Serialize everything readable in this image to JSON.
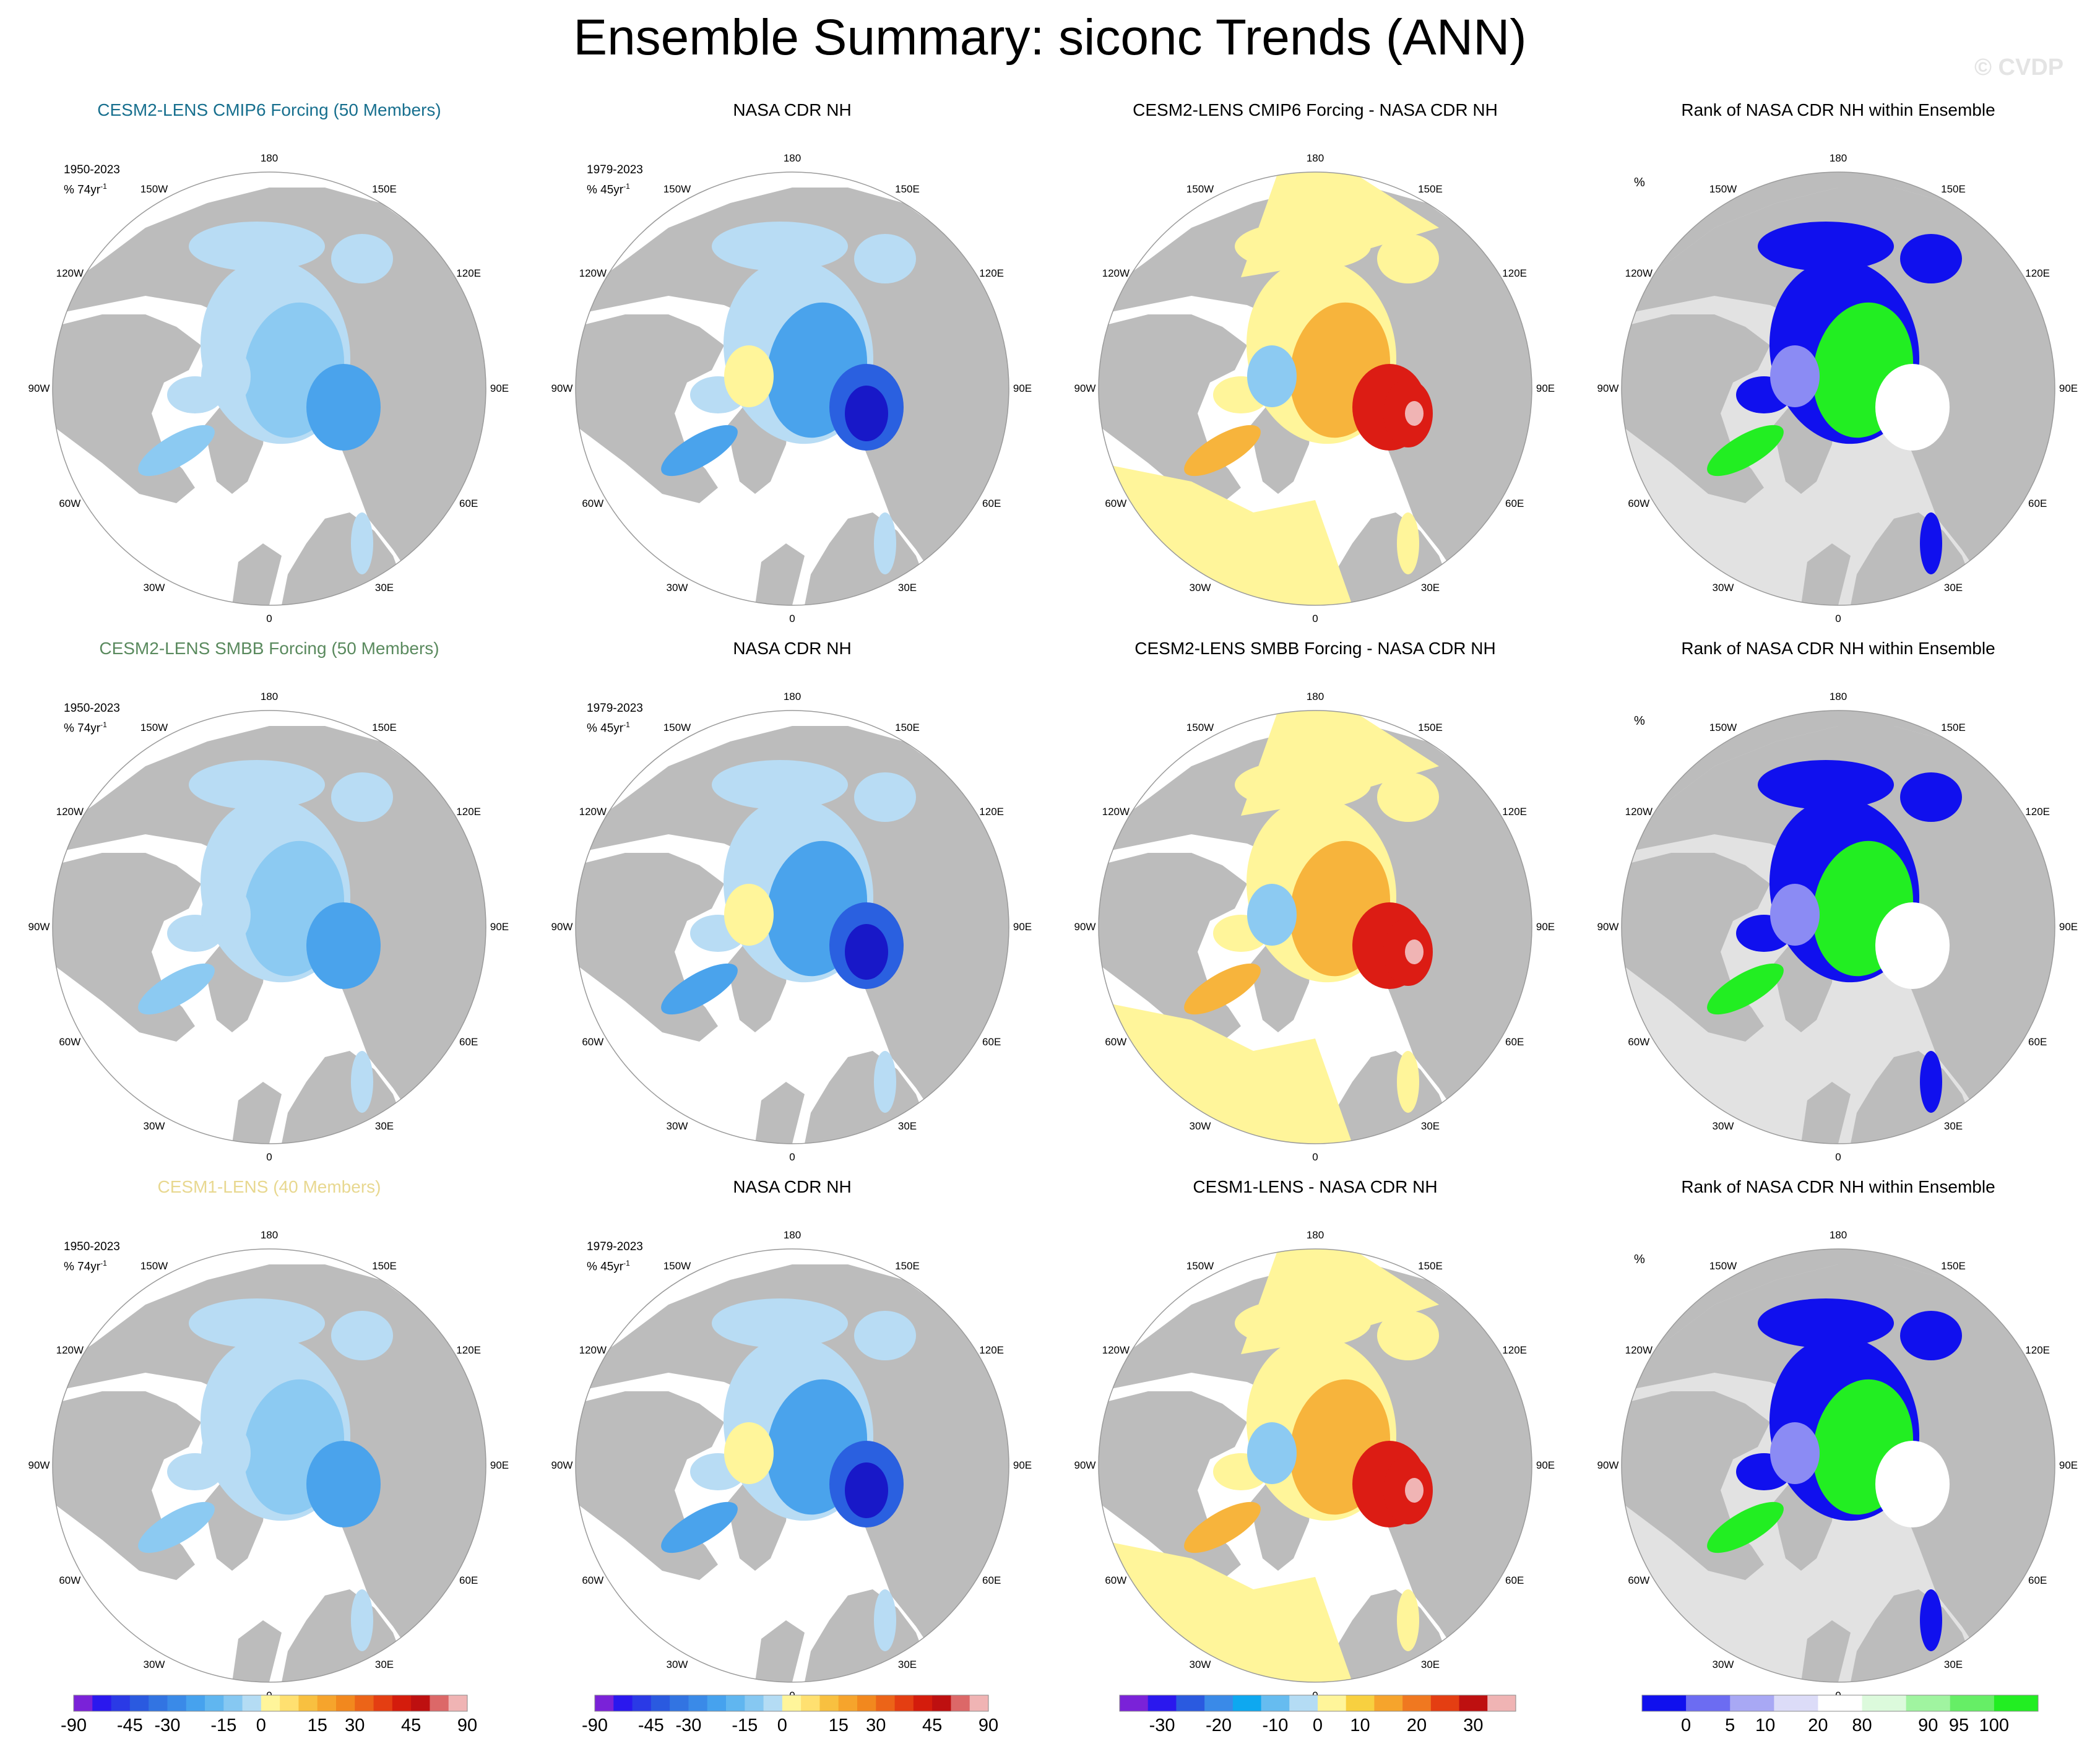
{
  "title": "Ensemble Summary: siconc Trends (ANN)",
  "watermark": "© CVDP",
  "colors": {
    "land": "#bcbcbc",
    "ocean": "#ffffff",
    "rank_background": "#e2e2e2",
    "blue_light": "#b8dcf4",
    "blue_mid": "#8ccaf2",
    "blue": "#4aa3ec",
    "blue_deep": "#2a60e0",
    "yellow": "#fff59a",
    "orange": "#f7b43c",
    "orange_red": "#f07820",
    "red": "#dc1c14",
    "pink": "#f0b4b4",
    "green": "#22ee22",
    "rank_blue": "#1010ee"
  },
  "longitude_labels": [
    "180",
    "150E",
    "120E",
    "90E",
    "60E",
    "30E",
    "0",
    "30W",
    "60W",
    "90W",
    "120W",
    "150W"
  ],
  "rows": [
    {
      "panels": [
        {
          "title": "CESM2-LENS CMIP6 Forcing (50 Members)",
          "title_color": "#176f8e",
          "period": "1950-2023",
          "units": "% 74yr",
          "units_sup": "-1",
          "kind": "model"
        },
        {
          "title": "NASA CDR NH",
          "title_color": "#000000",
          "period": "1979-2023",
          "units": "% 45yr",
          "units_sup": "-1",
          "kind": "obs"
        },
        {
          "title": "CESM2-LENS CMIP6 Forcing - NASA CDR NH",
          "title_color": "#000000",
          "kind": "diff"
        },
        {
          "title": "Rank of NASA CDR NH within Ensemble",
          "title_color": "#000000",
          "units": "%",
          "kind": "rank"
        }
      ]
    },
    {
      "panels": [
        {
          "title": "CESM2-LENS SMBB Forcing (50 Members)",
          "title_color": "#5a8a5e",
          "period": "1950-2023",
          "units": "% 74yr",
          "units_sup": "-1",
          "kind": "model"
        },
        {
          "title": "NASA CDR NH",
          "title_color": "#000000",
          "period": "1979-2023",
          "units": "% 45yr",
          "units_sup": "-1",
          "kind": "obs"
        },
        {
          "title": "CESM2-LENS SMBB Forcing - NASA CDR NH",
          "title_color": "#000000",
          "kind": "diff"
        },
        {
          "title": "Rank of NASA CDR NH within Ensemble",
          "title_color": "#000000",
          "units": "%",
          "kind": "rank"
        }
      ]
    },
    {
      "panels": [
        {
          "title": "CESM1-LENS (40 Members)",
          "title_color": "#e8d890",
          "period": "1950-2023",
          "units": "% 74yr",
          "units_sup": "-1",
          "kind": "model"
        },
        {
          "title": "NASA CDR NH",
          "title_color": "#000000",
          "period": "1979-2023",
          "units": "% 45yr",
          "units_sup": "-1",
          "kind": "obs"
        },
        {
          "title": "CESM1-LENS - NASA CDR NH",
          "title_color": "#000000",
          "kind": "diff"
        },
        {
          "title": "Rank of NASA CDR NH within Ensemble",
          "title_color": "#000000",
          "units": "%",
          "kind": "rank"
        }
      ]
    }
  ],
  "colorbars": [
    {
      "name": "trend-colorbar-1",
      "colors": [
        "#7a22d8",
        "#2a18ee",
        "#2a3ae6",
        "#2a5ae0",
        "#3274e2",
        "#3a8ae8",
        "#46a2ee",
        "#60b6f0",
        "#86c8f2",
        "#b4dcf4",
        "#fff59a",
        "#ffe070",
        "#f8c040",
        "#f6a42c",
        "#f2881e",
        "#ec6418",
        "#e43e12",
        "#d41c0c",
        "#be1010",
        "#dc6868",
        "#f0b4b4"
      ],
      "labels": [
        "-90",
        "-45",
        "-30",
        "-15",
        "0",
        "15",
        "30",
        "45",
        "90"
      ],
      "label_edges": [
        0,
        3,
        5,
        8,
        10,
        13,
        15,
        18,
        21
      ]
    },
    {
      "name": "trend-colorbar-2",
      "colors": [
        "#7a22d8",
        "#2a18ee",
        "#2a3ae6",
        "#2a5ae0",
        "#3274e2",
        "#3a8ae8",
        "#46a2ee",
        "#60b6f0",
        "#86c8f2",
        "#b4dcf4",
        "#fff59a",
        "#ffe070",
        "#f8c040",
        "#f6a42c",
        "#f2881e",
        "#ec6418",
        "#e43e12",
        "#d41c0c",
        "#be1010",
        "#dc6868",
        "#f0b4b4"
      ],
      "labels": [
        "-90",
        "-45",
        "-30",
        "-15",
        "0",
        "15",
        "30",
        "45",
        "90"
      ],
      "label_edges": [
        0,
        3,
        5,
        8,
        10,
        13,
        15,
        18,
        21
      ]
    },
    {
      "name": "difference-colorbar",
      "colors": [
        "#7a22d8",
        "#2a18ee",
        "#2a5ae0",
        "#3a8ae8",
        "#0ea8f0",
        "#66bcf0",
        "#b4dcf4",
        "#fff59a",
        "#f8d040",
        "#f6a42c",
        "#f07820",
        "#e43e12",
        "#be1010",
        "#f0b4b4"
      ],
      "labels": [
        "-30",
        "-20",
        "-10",
        "0",
        "10",
        "20",
        "30"
      ],
      "label_edges": [
        1.5,
        3.5,
        5.5,
        7,
        8.5,
        10.5,
        12.5
      ]
    },
    {
      "name": "rank-colorbar",
      "colors": [
        "#1010ee",
        "#6c6cf2",
        "#a8a8f4",
        "#dcdcf8",
        "#ffffff",
        "#dcfadc",
        "#a0f4a0",
        "#66ee66",
        "#22ee22"
      ],
      "labels": [
        "0",
        "5",
        "10",
        "20",
        "80",
        "90",
        "95",
        "100"
      ],
      "label_edges": [
        1,
        2,
        2.8,
        4,
        5,
        6.5,
        7.2,
        8
      ]
    }
  ]
}
